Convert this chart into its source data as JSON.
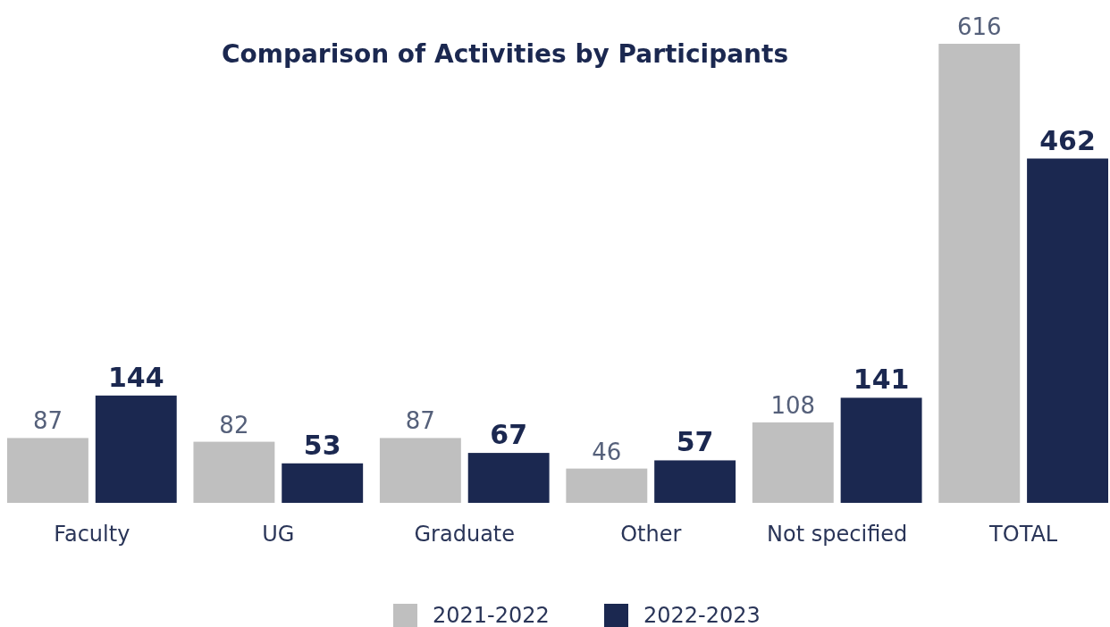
{
  "chart_data": {
    "type": "bar",
    "title": "Comparison of Activities by Participants",
    "categories": [
      "Faculty",
      "UG",
      "Graduate",
      "Other",
      "Not specified",
      "TOTAL"
    ],
    "series": [
      {
        "name": "2021-2022",
        "color": "#bfbfbf",
        "values": [
          87,
          82,
          87,
          46,
          108,
          616
        ]
      },
      {
        "name": "2022-2023",
        "color": "#1b2850",
        "values": [
          144,
          53,
          67,
          57,
          141,
          462
        ]
      }
    ],
    "ylim": [
      0,
      616
    ],
    "tick_labels": "x",
    "data_labels": true,
    "legend": "bottom"
  }
}
